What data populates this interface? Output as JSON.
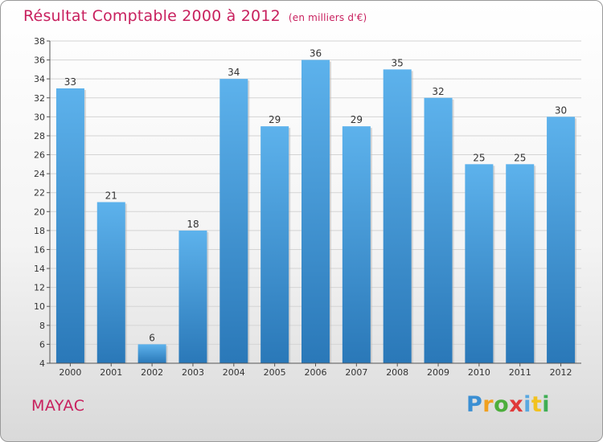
{
  "title": "Résultat Comptable 2000 à 2012",
  "subtitle": "(en milliers d'€)",
  "location": "MAYAC",
  "brand": {
    "letters": [
      "P",
      "r",
      "o",
      "x",
      "i",
      "t",
      "i"
    ]
  },
  "colors": {
    "title": "#c8205e",
    "bar_top": "#5db2ec",
    "bar_bottom": "#2a78b8",
    "axis": "#555555",
    "grid": "#d4d4d4"
  },
  "chart_data": {
    "type": "bar",
    "title": "Résultat Comptable 2000 à 2012",
    "subtitle": "(en milliers d'€)",
    "categories": [
      "2000",
      "2001",
      "2002",
      "2003",
      "2004",
      "2005",
      "2006",
      "2007",
      "2008",
      "2009",
      "2010",
      "2011",
      "2012"
    ],
    "values": [
      33,
      21,
      6,
      18,
      34,
      29,
      36,
      29,
      35,
      32,
      25,
      25,
      30
    ],
    "xlabel": "",
    "ylabel": "",
    "ylim": [
      4,
      38
    ],
    "yticks": [
      4,
      6,
      8,
      10,
      12,
      14,
      16,
      18,
      20,
      22,
      24,
      26,
      28,
      30,
      32,
      34,
      36,
      38
    ],
    "grid": true,
    "data_labels": true
  }
}
